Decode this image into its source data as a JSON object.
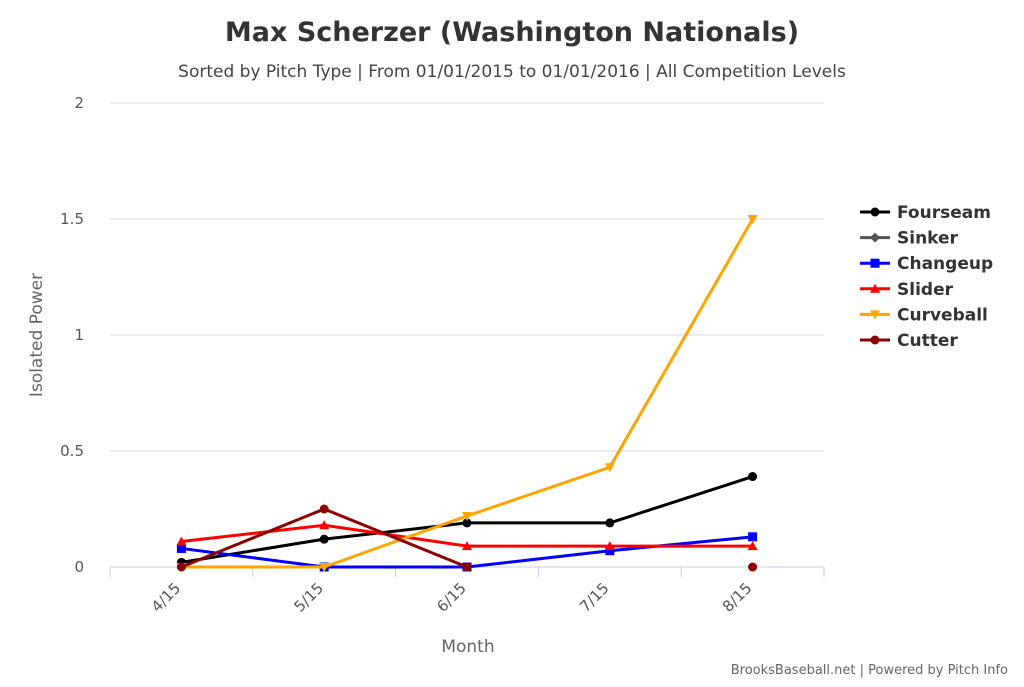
{
  "chart_data": {
    "type": "line",
    "title": "Max Scherzer (Washington Nationals)",
    "subtitle": "Sorted by Pitch Type | From 01/01/2015 to 01/01/2016 | All Competition Levels",
    "xlabel": "Month",
    "ylabel": "Isolated Power",
    "categories": [
      "4/15",
      "5/15",
      "6/15",
      "7/15",
      "8/15"
    ],
    "ylim": [
      0,
      2
    ],
    "yticks": [
      "0",
      "0.5",
      "1",
      "1.5",
      "2"
    ],
    "grid": true,
    "legend_position": "right",
    "series": [
      {
        "name": "Fourseam",
        "color": "#000000",
        "marker": "circle",
        "values": [
          0.02,
          0.12,
          0.19,
          0.19,
          0.39
        ]
      },
      {
        "name": "Sinker",
        "color": "#555555",
        "marker": "diamond",
        "values": [
          null,
          null,
          null,
          null,
          null
        ]
      },
      {
        "name": "Changeup",
        "color": "#0000ff",
        "marker": "square",
        "values": [
          0.08,
          0.0,
          0.0,
          0.07,
          0.13
        ]
      },
      {
        "name": "Slider",
        "color": "#ff0000",
        "marker": "triangle",
        "values": [
          0.11,
          0.18,
          0.09,
          0.09,
          0.09
        ]
      },
      {
        "name": "Curveball",
        "color": "#ffa500",
        "marker": "triangle-down",
        "values": [
          0.0,
          0.0,
          0.22,
          0.43,
          1.5
        ]
      },
      {
        "name": "Cutter",
        "color": "#8b0000",
        "marker": "circle",
        "values": [
          0.0,
          0.25,
          0.0,
          null,
          0.0
        ]
      }
    ]
  },
  "credits": "BrooksBaseball.net | Powered by Pitch Info"
}
